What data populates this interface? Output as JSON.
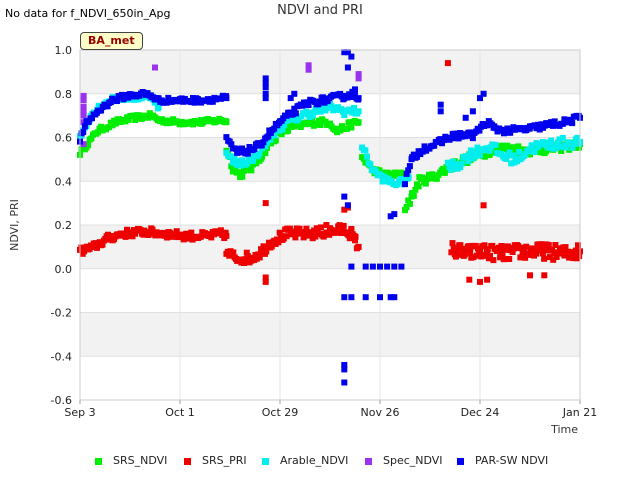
{
  "header": {
    "no_data_note": "No data for f_NDVI_650in_Apg",
    "title": "NDVI and PRI"
  },
  "badge": {
    "label": "BA_met",
    "color": "#990000"
  },
  "chart_data": {
    "type": "scatter",
    "title": "NDVI and PRI",
    "xlabel": "Time",
    "ylabel": "NDVI, PRI",
    "ylim": [
      -0.6,
      1.0
    ],
    "xlim_days": [
      0,
      140
    ],
    "grid": true,
    "x_ticks": [
      {
        "day": 0,
        "label": "Sep 3"
      },
      {
        "day": 28,
        "label": "Oct 1"
      },
      {
        "day": 56,
        "label": "Oct 29"
      },
      {
        "day": 84,
        "label": "Nov 26"
      },
      {
        "day": 112,
        "label": "Dec 24"
      },
      {
        "day": 140,
        "label": "Jan 21"
      }
    ],
    "y_ticks": [
      -0.6,
      -0.4,
      -0.2,
      0.0,
      0.2,
      0.4,
      0.6,
      0.8,
      1.0
    ],
    "legend_position": "bottom",
    "series": [
      {
        "name": "SRS_NDVI",
        "color": "#00ee00",
        "segments": [
          {
            "points": [
              [
                0,
                0.53
              ],
              [
                5,
                0.63
              ],
              [
                10,
                0.67
              ],
              [
                15,
                0.69
              ],
              [
                20,
                0.7
              ],
              [
                22,
                0.68
              ],
              [
                28,
                0.67
              ],
              [
                34,
                0.67
              ],
              [
                40,
                0.68
              ],
              [
                41,
                0.67
              ]
            ],
            "noise": 0.012,
            "density": 2.2
          },
          {
            "points": [
              [
                41,
                0.55
              ],
              [
                43,
                0.45
              ],
              [
                45,
                0.43
              ],
              [
                48,
                0.46
              ],
              [
                51,
                0.52
              ],
              [
                53,
                0.57
              ],
              [
                56,
                0.62
              ],
              [
                60,
                0.65
              ],
              [
                66,
                0.67
              ],
              [
                70,
                0.67
              ],
              [
                72,
                0.63
              ],
              [
                76,
                0.66
              ],
              [
                78,
                0.67
              ]
            ],
            "noise": 0.015,
            "density": 2.2
          },
          {
            "points": [
              [
                79,
                0.51
              ],
              [
                82,
                0.45
              ],
              [
                86,
                0.43
              ],
              [
                90,
                0.43
              ],
              [
                91,
                0.42
              ]
            ],
            "noise": 0.012,
            "density": 2.2
          },
          {
            "points": [
              [
                91,
                0.28
              ],
              [
                93,
                0.33
              ],
              [
                95,
                0.4
              ],
              [
                99,
                0.42
              ],
              [
                104,
                0.47
              ],
              [
                108,
                0.5
              ],
              [
                112,
                0.52
              ],
              [
                116,
                0.55
              ],
              [
                120,
                0.55
              ],
              [
                126,
                0.54
              ],
              [
                132,
                0.55
              ],
              [
                140,
                0.57
              ]
            ],
            "noise": 0.02,
            "density": 2.2
          }
        ]
      },
      {
        "name": "SRS_PRI",
        "color": "#ee0000",
        "segments": [
          {
            "points": [
              [
                0,
                0.08
              ],
              [
                4,
                0.1
              ],
              [
                8,
                0.14
              ],
              [
                12,
                0.16
              ],
              [
                18,
                0.17
              ],
              [
                24,
                0.16
              ],
              [
                30,
                0.15
              ],
              [
                36,
                0.15
              ],
              [
                40,
                0.16
              ],
              [
                41,
                0.15
              ]
            ],
            "noise": 0.018,
            "density": 2.6
          },
          {
            "points": [
              [
                41,
                0.07
              ],
              [
                44,
                0.05
              ],
              [
                48,
                0.05
              ],
              [
                51,
                0.08
              ],
              [
                54,
                0.13
              ],
              [
                58,
                0.16
              ],
              [
                64,
                0.16
              ],
              [
                70,
                0.17
              ],
              [
                74,
                0.18
              ],
              [
                76,
                0.16
              ],
              [
                78,
                0.1
              ]
            ],
            "noise": 0.025,
            "density": 2.6
          },
          {
            "points": [
              [
                104,
                0.09
              ],
              [
                108,
                0.07
              ],
              [
                112,
                0.08
              ],
              [
                118,
                0.07
              ],
              [
                124,
                0.08
              ],
              [
                130,
                0.08
              ],
              [
                136,
                0.07
              ],
              [
                140,
                0.08
              ]
            ],
            "noise": 0.035,
            "density": 3.2
          }
        ],
        "extra_points": [
          [
            52,
            0.3
          ],
          [
            52,
            -0.04
          ],
          [
            52,
            -0.06
          ],
          [
            69,
            0.2
          ],
          [
            74,
            0.27
          ],
          [
            75,
            0.28
          ],
          [
            77,
            0.14
          ],
          [
            77,
            0.13
          ],
          [
            103,
            0.94
          ],
          [
            109,
            -0.05
          ],
          [
            112,
            -0.06
          ],
          [
            114,
            -0.05
          ],
          [
            113,
            0.29
          ],
          [
            126,
            -0.03
          ],
          [
            130,
            -0.03
          ]
        ]
      },
      {
        "name": "Arable_NDVI",
        "color": "#00eeee",
        "segments": [
          {
            "points": [
              [
                0,
                0.6
              ],
              [
                3,
                0.7
              ],
              [
                6,
                0.75
              ],
              [
                10,
                0.78
              ],
              [
                15,
                0.78
              ],
              [
                20,
                0.79
              ],
              [
                22,
                0.74
              ]
            ],
            "noise": 0.012,
            "density": 2.2
          },
          {
            "points": [
              [
                41,
                0.52
              ],
              [
                44,
                0.48
              ],
              [
                48,
                0.5
              ],
              [
                51,
                0.55
              ],
              [
                54,
                0.62
              ],
              [
                58,
                0.67
              ],
              [
                62,
                0.7
              ],
              [
                66,
                0.72
              ],
              [
                70,
                0.74
              ],
              [
                74,
                0.72
              ],
              [
                78,
                0.72
              ]
            ],
            "noise": 0.018,
            "density": 2.2
          },
          {
            "points": [
              [
                79,
                0.56
              ],
              [
                82,
                0.45
              ],
              [
                85,
                0.41
              ],
              [
                88,
                0.39
              ],
              [
                91,
                0.4
              ],
              [
                92,
                0.42
              ]
            ],
            "noise": 0.015,
            "density": 2.2
          },
          {
            "points": [
              [
                103,
                0.46
              ],
              [
                106,
                0.48
              ],
              [
                109,
                0.52
              ],
              [
                112,
                0.54
              ],
              [
                115,
                0.56
              ],
              [
                118,
                0.52
              ],
              [
                122,
                0.5
              ],
              [
                126,
                0.55
              ],
              [
                132,
                0.57
              ],
              [
                140,
                0.58
              ]
            ],
            "noise": 0.025,
            "density": 2.2
          }
        ]
      },
      {
        "name": "Spec_NDVI",
        "color": "#9933ee",
        "segments": [],
        "extra_points": [
          [
            1,
            0.79
          ],
          [
            1,
            0.77
          ],
          [
            1,
            0.74
          ],
          [
            1,
            0.72
          ],
          [
            1,
            0.7
          ],
          [
            1,
            0.67
          ],
          [
            1,
            0.57
          ],
          [
            21,
            0.92
          ],
          [
            64,
            0.93
          ],
          [
            64,
            0.91
          ],
          [
            78,
            0.89
          ],
          [
            78,
            0.87
          ]
        ]
      },
      {
        "name": "PAR-SW NDVI",
        "color": "#0000ee",
        "segments": [
          {
            "points": [
              [
                0,
                0.59
              ],
              [
                2,
                0.67
              ],
              [
                5,
                0.72
              ],
              [
                9,
                0.77
              ],
              [
                13,
                0.79
              ],
              [
                18,
                0.8
              ],
              [
                20,
                0.79
              ],
              [
                22,
                0.77
              ],
              [
                28,
                0.77
              ],
              [
                34,
                0.77
              ],
              [
                40,
                0.78
              ],
              [
                41,
                0.78
              ]
            ],
            "noise": 0.012,
            "density": 2.2
          },
          {
            "points": [
              [
                41,
                0.59
              ],
              [
                44,
                0.53
              ],
              [
                47,
                0.54
              ],
              [
                50,
                0.56
              ],
              [
                53,
                0.62
              ],
              [
                56,
                0.67
              ],
              [
                60,
                0.72
              ],
              [
                64,
                0.76
              ],
              [
                68,
                0.77
              ],
              [
                71,
                0.78
              ],
              [
                74,
                0.79
              ],
              [
                77,
                0.8
              ],
              [
                78,
                0.78
              ]
            ],
            "noise": 0.015,
            "density": 2.2
          },
          {
            "points": [
              [
                91,
                0.4
              ],
              [
                93,
                0.5
              ],
              [
                96,
                0.55
              ],
              [
                100,
                0.57
              ],
              [
                103,
                0.6
              ],
              [
                106,
                0.61
              ],
              [
                110,
                0.61
              ],
              [
                114,
                0.67
              ],
              [
                116,
                0.64
              ],
              [
                120,
                0.63
              ],
              [
                126,
                0.64
              ],
              [
                132,
                0.66
              ],
              [
                136,
                0.67
              ],
              [
                140,
                0.69
              ]
            ],
            "noise": 0.015,
            "density": 2.2
          }
        ],
        "extra_points": [
          [
            52,
            0.87
          ],
          [
            52,
            0.85
          ],
          [
            52,
            0.83
          ],
          [
            52,
            0.8
          ],
          [
            52,
            0.78
          ],
          [
            60,
            0.8
          ],
          [
            59,
            0.78
          ],
          [
            74,
            0.99
          ],
          [
            75,
            0.99
          ],
          [
            76,
            0.97
          ],
          [
            75,
            0.92
          ],
          [
            77,
            0.82
          ],
          [
            74,
            0.33
          ],
          [
            75,
            0.29
          ],
          [
            74,
            -0.13
          ],
          [
            76,
            -0.13
          ],
          [
            80,
            -0.13
          ],
          [
            84,
            -0.13
          ],
          [
            87,
            -0.13
          ],
          [
            88,
            -0.13
          ],
          [
            76,
            0.01
          ],
          [
            80,
            0.01
          ],
          [
            82,
            0.01
          ],
          [
            84,
            0.01
          ],
          [
            86,
            0.01
          ],
          [
            88,
            0.01
          ],
          [
            90,
            0.01
          ],
          [
            74,
            -0.44
          ],
          [
            74,
            -0.46
          ],
          [
            74,
            -0.52
          ],
          [
            87,
            0.24
          ],
          [
            88,
            0.25
          ],
          [
            113,
            0.8
          ],
          [
            112,
            0.78
          ],
          [
            110,
            0.72
          ],
          [
            101,
            0.72
          ],
          [
            101,
            0.75
          ],
          [
            108,
            0.69
          ]
        ]
      }
    ]
  },
  "legend": [
    {
      "label": "SRS_NDVI",
      "color": "#00ee00"
    },
    {
      "label": "SRS_PRI",
      "color": "#ee0000"
    },
    {
      "label": "Arable_NDVI",
      "color": "#00eeee"
    },
    {
      "label": "Spec_NDVI",
      "color": "#9933ee"
    },
    {
      "label": "PAR-SW NDVI",
      "color": "#0000ee"
    }
  ]
}
